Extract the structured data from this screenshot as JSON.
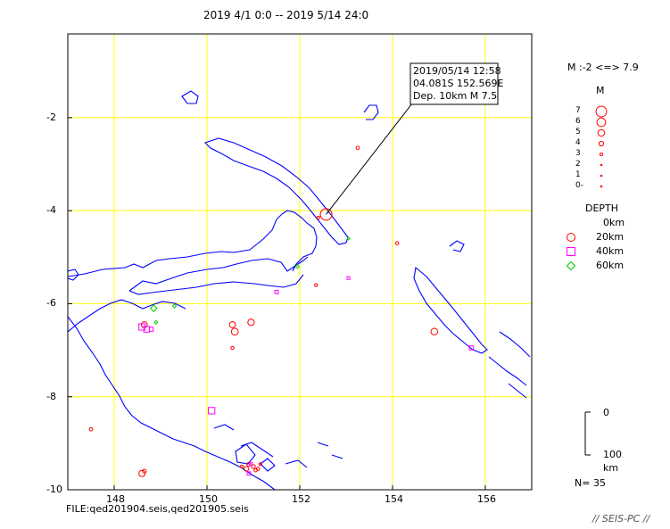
{
  "header": {
    "title": "2019 4/1 0:0 -- 2019 5/14 24:0"
  },
  "axes": {
    "lon_ticks": [
      "148",
      "150",
      "152",
      "154",
      "156"
    ],
    "lat_ticks": [
      "-2",
      "-4",
      "-6",
      "-8",
      "-10"
    ],
    "lon_range": [
      147,
      157
    ],
    "lat_range": [
      -10,
      -0.2
    ]
  },
  "callout": {
    "line1": "2019/05/14 12:58",
    "line2": "04.081S   152.569E",
    "line3": "Dep. 10km    M 7.5",
    "event": {
      "lon": 152.569,
      "lat": -4.081
    }
  },
  "magnitude_legend": {
    "range": "M :-2 <=> 7.9",
    "title": "M",
    "levels": [
      "7",
      "6",
      "5",
      "4",
      "3",
      "2",
      "1",
      "0-"
    ]
  },
  "depth_legend": {
    "title": "DEPTH",
    "entries": [
      {
        "label": "0km",
        "symbol": "none"
      },
      {
        "label": "20km",
        "symbol": "circle",
        "color": "#ff0000"
      },
      {
        "label": "40km",
        "symbol": "square",
        "color": "#ff00ff"
      },
      {
        "label": "60km",
        "symbol": "diamond",
        "color": "#00cc00"
      }
    ]
  },
  "depth_scale": {
    "top": "0",
    "bottom": "100",
    "unit": "km"
  },
  "count": "N=  35",
  "file": "FILE:qed201904.seis,qed201905.seis",
  "brand": "// SEIS-PC //",
  "colors": {
    "grid": "#ffff00",
    "coast": "#0000ff",
    "frame": "#000000"
  },
  "events": [
    {
      "lon": 152.569,
      "lat": -4.081,
      "depth": 10,
      "mag": 7.5
    },
    {
      "lon": 153.25,
      "lat": -2.65,
      "depth": 10,
      "mag": 3.3
    },
    {
      "lon": 152.4,
      "lat": -4.15,
      "depth": 25,
      "mag": 3.0
    },
    {
      "lon": 154.1,
      "lat": -4.7,
      "depth": 15,
      "mag": 3.2
    },
    {
      "lon": 153.05,
      "lat": -5.45,
      "depth": 30,
      "mag": 3.0
    },
    {
      "lon": 152.35,
      "lat": -5.6,
      "depth": 15,
      "mag": 3.0
    },
    {
      "lon": 151.95,
      "lat": -5.2,
      "depth": 60,
      "mag": 3.4
    },
    {
      "lon": 150.95,
      "lat": -6.4,
      "depth": 15,
      "mag": 4.9
    },
    {
      "lon": 150.55,
      "lat": -6.45,
      "depth": 15,
      "mag": 4.7
    },
    {
      "lon": 150.6,
      "lat": -6.6,
      "depth": 15,
      "mag": 5.1
    },
    {
      "lon": 150.55,
      "lat": -6.95,
      "depth": 15,
      "mag": 3.2
    },
    {
      "lon": 151.5,
      "lat": -5.75,
      "depth": 35,
      "mag": 3.3
    },
    {
      "lon": 148.65,
      "lat": -6.45,
      "depth": 15,
      "mag": 4.6
    },
    {
      "lon": 148.6,
      "lat": -6.5,
      "depth": 35,
      "mag": 4.8
    },
    {
      "lon": 148.7,
      "lat": -6.55,
      "depth": 35,
      "mag": 4.5
    },
    {
      "lon": 148.8,
      "lat": -6.55,
      "depth": 35,
      "mag": 3.6
    },
    {
      "lon": 148.85,
      "lat": -6.1,
      "depth": 60,
      "mag": 4.9
    },
    {
      "lon": 148.9,
      "lat": -6.4,
      "depth": 60,
      "mag": 3.3
    },
    {
      "lon": 149.3,
      "lat": -6.05,
      "depth": 60,
      "mag": 3.5
    },
    {
      "lon": 154.9,
      "lat": -6.6,
      "depth": 15,
      "mag": 5.0
    },
    {
      "lon": 155.7,
      "lat": -6.95,
      "depth": 35,
      "mag": 3.7
    },
    {
      "lon": 153.05,
      "lat": -4.6,
      "depth": 60,
      "mag": 3.0
    },
    {
      "lon": 150.1,
      "lat": -8.3,
      "depth": 35,
      "mag": 4.9
    },
    {
      "lon": 147.5,
      "lat": -8.7,
      "depth": 15,
      "mag": 3.3
    },
    {
      "lon": 148.6,
      "lat": -9.65,
      "depth": 15,
      "mag": 4.8
    },
    {
      "lon": 148.65,
      "lat": -9.6,
      "depth": 15,
      "mag": 3.5
    },
    {
      "lon": 150.9,
      "lat": -9.45,
      "depth": 15,
      "mag": 3.5
    },
    {
      "lon": 150.85,
      "lat": -9.55,
      "depth": 15,
      "mag": 4.0
    },
    {
      "lon": 151.0,
      "lat": -9.5,
      "depth": 15,
      "mag": 3.6
    },
    {
      "lon": 151.05,
      "lat": -9.58,
      "depth": 15,
      "mag": 3.3
    },
    {
      "lon": 150.9,
      "lat": -9.65,
      "depth": 35,
      "mag": 3.3
    },
    {
      "lon": 150.95,
      "lat": -9.45,
      "depth": 35,
      "mag": 3.1
    },
    {
      "lon": 151.1,
      "lat": -9.55,
      "depth": 15,
      "mag": 3.2
    },
    {
      "lon": 150.75,
      "lat": -9.5,
      "depth": 15,
      "mag": 3.0
    },
    {
      "lon": 151.15,
      "lat": -9.45,
      "depth": 15,
      "mag": 3.0
    }
  ]
}
